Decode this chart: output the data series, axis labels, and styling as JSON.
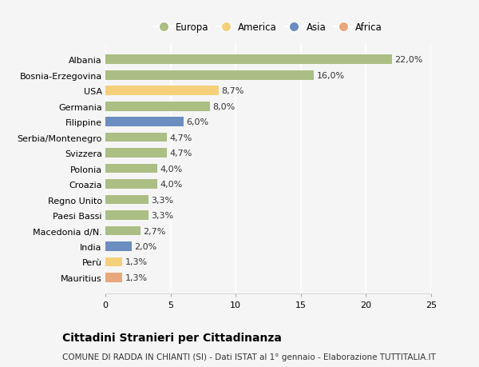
{
  "countries": [
    "Albania",
    "Bosnia-Erzegovina",
    "USA",
    "Germania",
    "Filippine",
    "Serbia/Montenegro",
    "Svizzera",
    "Polonia",
    "Croazia",
    "Regno Unito",
    "Paesi Bassi",
    "Macedonia d/N.",
    "India",
    "Perù",
    "Mauritius"
  ],
  "values": [
    22.0,
    16.0,
    8.7,
    8.0,
    6.0,
    4.7,
    4.7,
    4.0,
    4.0,
    3.3,
    3.3,
    2.7,
    2.0,
    1.3,
    1.3
  ],
  "labels": [
    "22,0%",
    "16,0%",
    "8,7%",
    "8,0%",
    "6,0%",
    "4,7%",
    "4,7%",
    "4,0%",
    "4,0%",
    "3,3%",
    "3,3%",
    "2,7%",
    "2,0%",
    "1,3%",
    "1,3%"
  ],
  "categories": [
    "Europa",
    "Europa",
    "America",
    "Europa",
    "Asia",
    "Europa",
    "Europa",
    "Europa",
    "Europa",
    "Europa",
    "Europa",
    "Europa",
    "Asia",
    "America",
    "Africa"
  ],
  "colors": {
    "Europa": "#abbe84",
    "America": "#f5d07a",
    "Asia": "#6b8dbf",
    "Africa": "#e8a87c"
  },
  "legend_order": [
    "Europa",
    "America",
    "Asia",
    "Africa"
  ],
  "xlim": [
    0,
    25
  ],
  "xticks": [
    0,
    5,
    10,
    15,
    20,
    25
  ],
  "title": "Cittadini Stranieri per Cittadinanza",
  "subtitle": "COMUNE DI RADDA IN CHIANTI (SI) - Dati ISTAT al 1° gennaio - Elaborazione TUTTITALIA.IT",
  "background_color": "#f5f5f5",
  "plot_bg_color": "#f5f5f5",
  "bar_height": 0.6,
  "grid_color": "#ffffff",
  "label_fontsize": 8,
  "ytick_fontsize": 8,
  "xtick_fontsize": 8,
  "title_fontsize": 10,
  "subtitle_fontsize": 7.5
}
